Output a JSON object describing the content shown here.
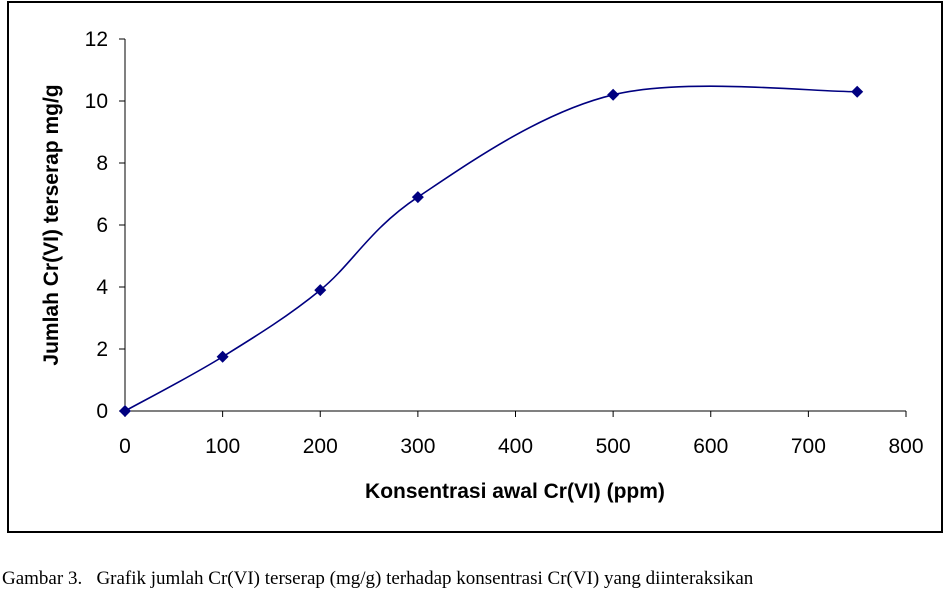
{
  "chart_data": {
    "type": "line",
    "title": "",
    "xlabel": "Konsentrasi awal Cr(VI) (ppm)",
    "ylabel": "Jumlah Cr(VI) terserap mg/g",
    "xlim": [
      0,
      800
    ],
    "ylim": [
      0,
      12
    ],
    "xticks": [
      0,
      100,
      200,
      300,
      400,
      500,
      600,
      700,
      800
    ],
    "yticks": [
      0,
      2,
      4,
      6,
      8,
      10,
      12
    ],
    "grid": false,
    "legend": "none",
    "line_color": "#000080",
    "marker": "diamond",
    "series": [
      {
        "x": [
          0,
          100,
          200,
          300,
          500,
          750
        ],
        "y": [
          0,
          1.75,
          3.9,
          6.9,
          10.2,
          10.3
        ]
      }
    ]
  },
  "caption": "Gambar 3.   Grafik jumlah Cr(VI) terserap (mg/g) terhadap konsentrasi Cr(VI) yang diinteraksikan"
}
